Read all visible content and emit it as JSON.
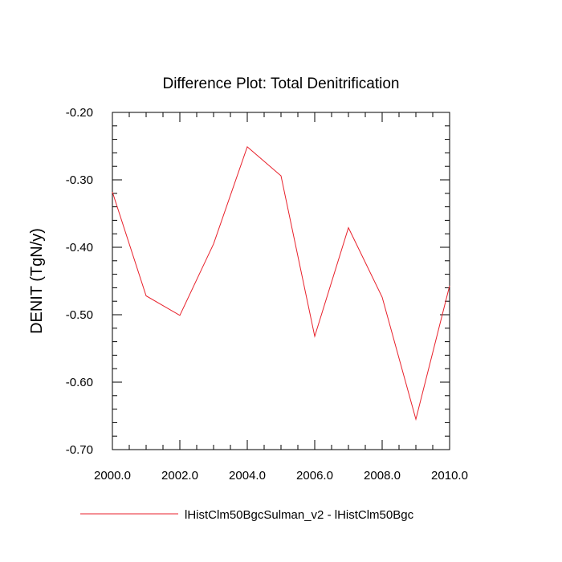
{
  "chart_data": {
    "type": "line",
    "title": "Difference Plot: Total Denitrification",
    "xlabel": "",
    "ylabel": "DENIT  (TgN/y)",
    "xlim": [
      2000,
      2010
    ],
    "ylim": [
      -0.7,
      -0.2
    ],
    "x_ticks": [
      "2000.0",
      "2002.0",
      "2004.0",
      "2006.0",
      "2008.0",
      "2010.0"
    ],
    "y_ticks": [
      "-0.20",
      "-0.30",
      "-0.40",
      "-0.50",
      "-0.60",
      "-0.70"
    ],
    "grid": false,
    "legend_position": "bottom",
    "series": [
      {
        "name": "lHistClm50BgcSulman_v2 - lHistClm50Bgc",
        "color": "#e8212b",
        "x": [
          2000,
          2001,
          2002,
          2003,
          2004,
          2005,
          2006,
          2007,
          2008,
          2009,
          2010
        ],
        "values": [
          -0.318,
          -0.472,
          -0.501,
          -0.395,
          -0.251,
          -0.294,
          -0.532,
          -0.371,
          -0.474,
          -0.655,
          -0.457
        ]
      }
    ]
  }
}
